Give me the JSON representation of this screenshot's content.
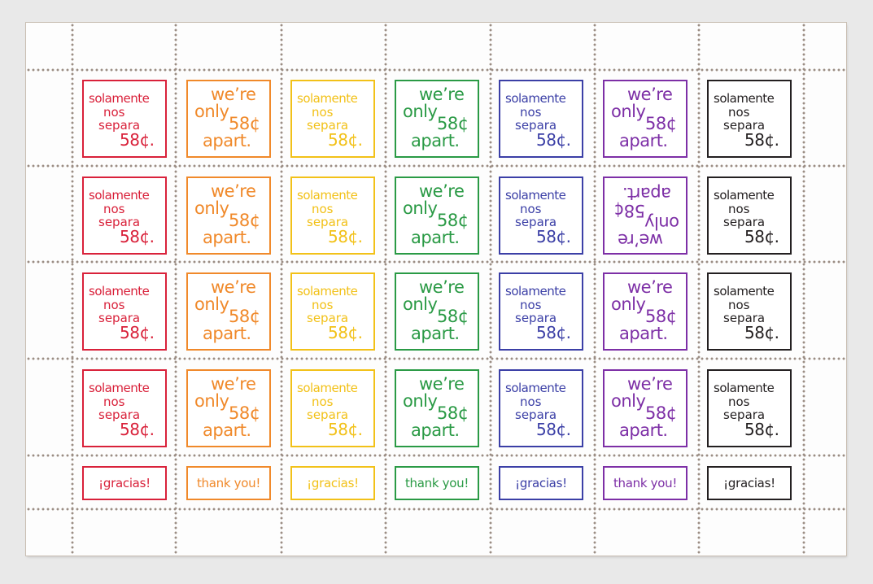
{
  "sheet": {
    "columns": [
      {
        "color": "#d9213a",
        "design": "spanish",
        "thanks": "¡gracias!"
      },
      {
        "color": "#f0892a",
        "design": "english",
        "thanks": "thank you!"
      },
      {
        "color": "#f2c118",
        "design": "spanish",
        "thanks": "¡gracias!"
      },
      {
        "color": "#2a9a45",
        "design": "english",
        "thanks": "thank you!"
      },
      {
        "color": "#3b3fa6",
        "design": "spanish",
        "thanks": "¡gracias!"
      },
      {
        "color": "#7d2fa6",
        "design": "english",
        "thanks": "thank you!"
      },
      {
        "color": "#231f20",
        "design": "spanish",
        "thanks": "¡gracias!"
      }
    ],
    "rows": 4,
    "inverted": [
      {
        "row": 2,
        "column": 6
      }
    ],
    "spanish": {
      "line1": "solamente",
      "line2": "nos",
      "line3": "separa",
      "value": "58¢."
    },
    "english": {
      "line1": "we’re",
      "line2": "only",
      "value": "58¢",
      "line3": "apart."
    }
  }
}
